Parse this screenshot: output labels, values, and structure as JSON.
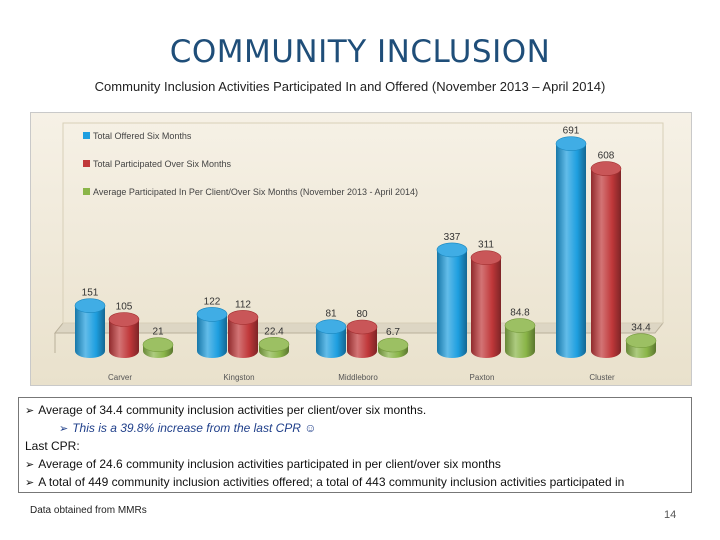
{
  "slide": {
    "title": "COMMUNITY INCLUSION",
    "subtitle": "Community Inclusion Activities Participated In and Offered  (November 2013 – April 2014)",
    "footer_note": "Data obtained from MMRs",
    "page_number": "14"
  },
  "notes": {
    "line1": "Average of 34.4 community inclusion activities per client/over six months.",
    "line2": "This is a 39.8% increase  from the last CPR ☺",
    "line3": "Last CPR:",
    "line4": "Average of 24.6 community inclusion activities participated in per client/over six months",
    "line5": "A total of 449 community inclusion activities offered; a total of 443 community inclusion activities participated in"
  },
  "chart_data": {
    "type": "bar",
    "title": "",
    "xlabel": "",
    "ylabel": "",
    "ylim": [
      0,
      700
    ],
    "grid": false,
    "legend_position": "top-left",
    "categories": [
      "Carver",
      "Kingston",
      "Middleboro",
      "Paxton",
      "Cluster"
    ],
    "series": [
      {
        "name": "Total Offered Six Months",
        "values": [
          151,
          122,
          81,
          337,
          691
        ],
        "labels": [
          "151",
          "122",
          "81",
          "337",
          "691"
        ],
        "color": "#1e9fe0"
      },
      {
        "name": "Total Participated Over Six Months",
        "values": [
          105,
          112,
          80,
          311,
          608
        ],
        "labels": [
          "105",
          "112",
          "80",
          "311",
          "608"
        ],
        "color": "#c0383a"
      },
      {
        "name": "Average Participated In Per Client/Over Six Months (November 2013 - April 2014)",
        "values": [
          21,
          22.4,
          6.7,
          84.8,
          34.4
        ],
        "labels": [
          "21",
          "22.4",
          "6.7",
          "84.8",
          "34.4"
        ],
        "color": "#8ab548"
      }
    ]
  }
}
